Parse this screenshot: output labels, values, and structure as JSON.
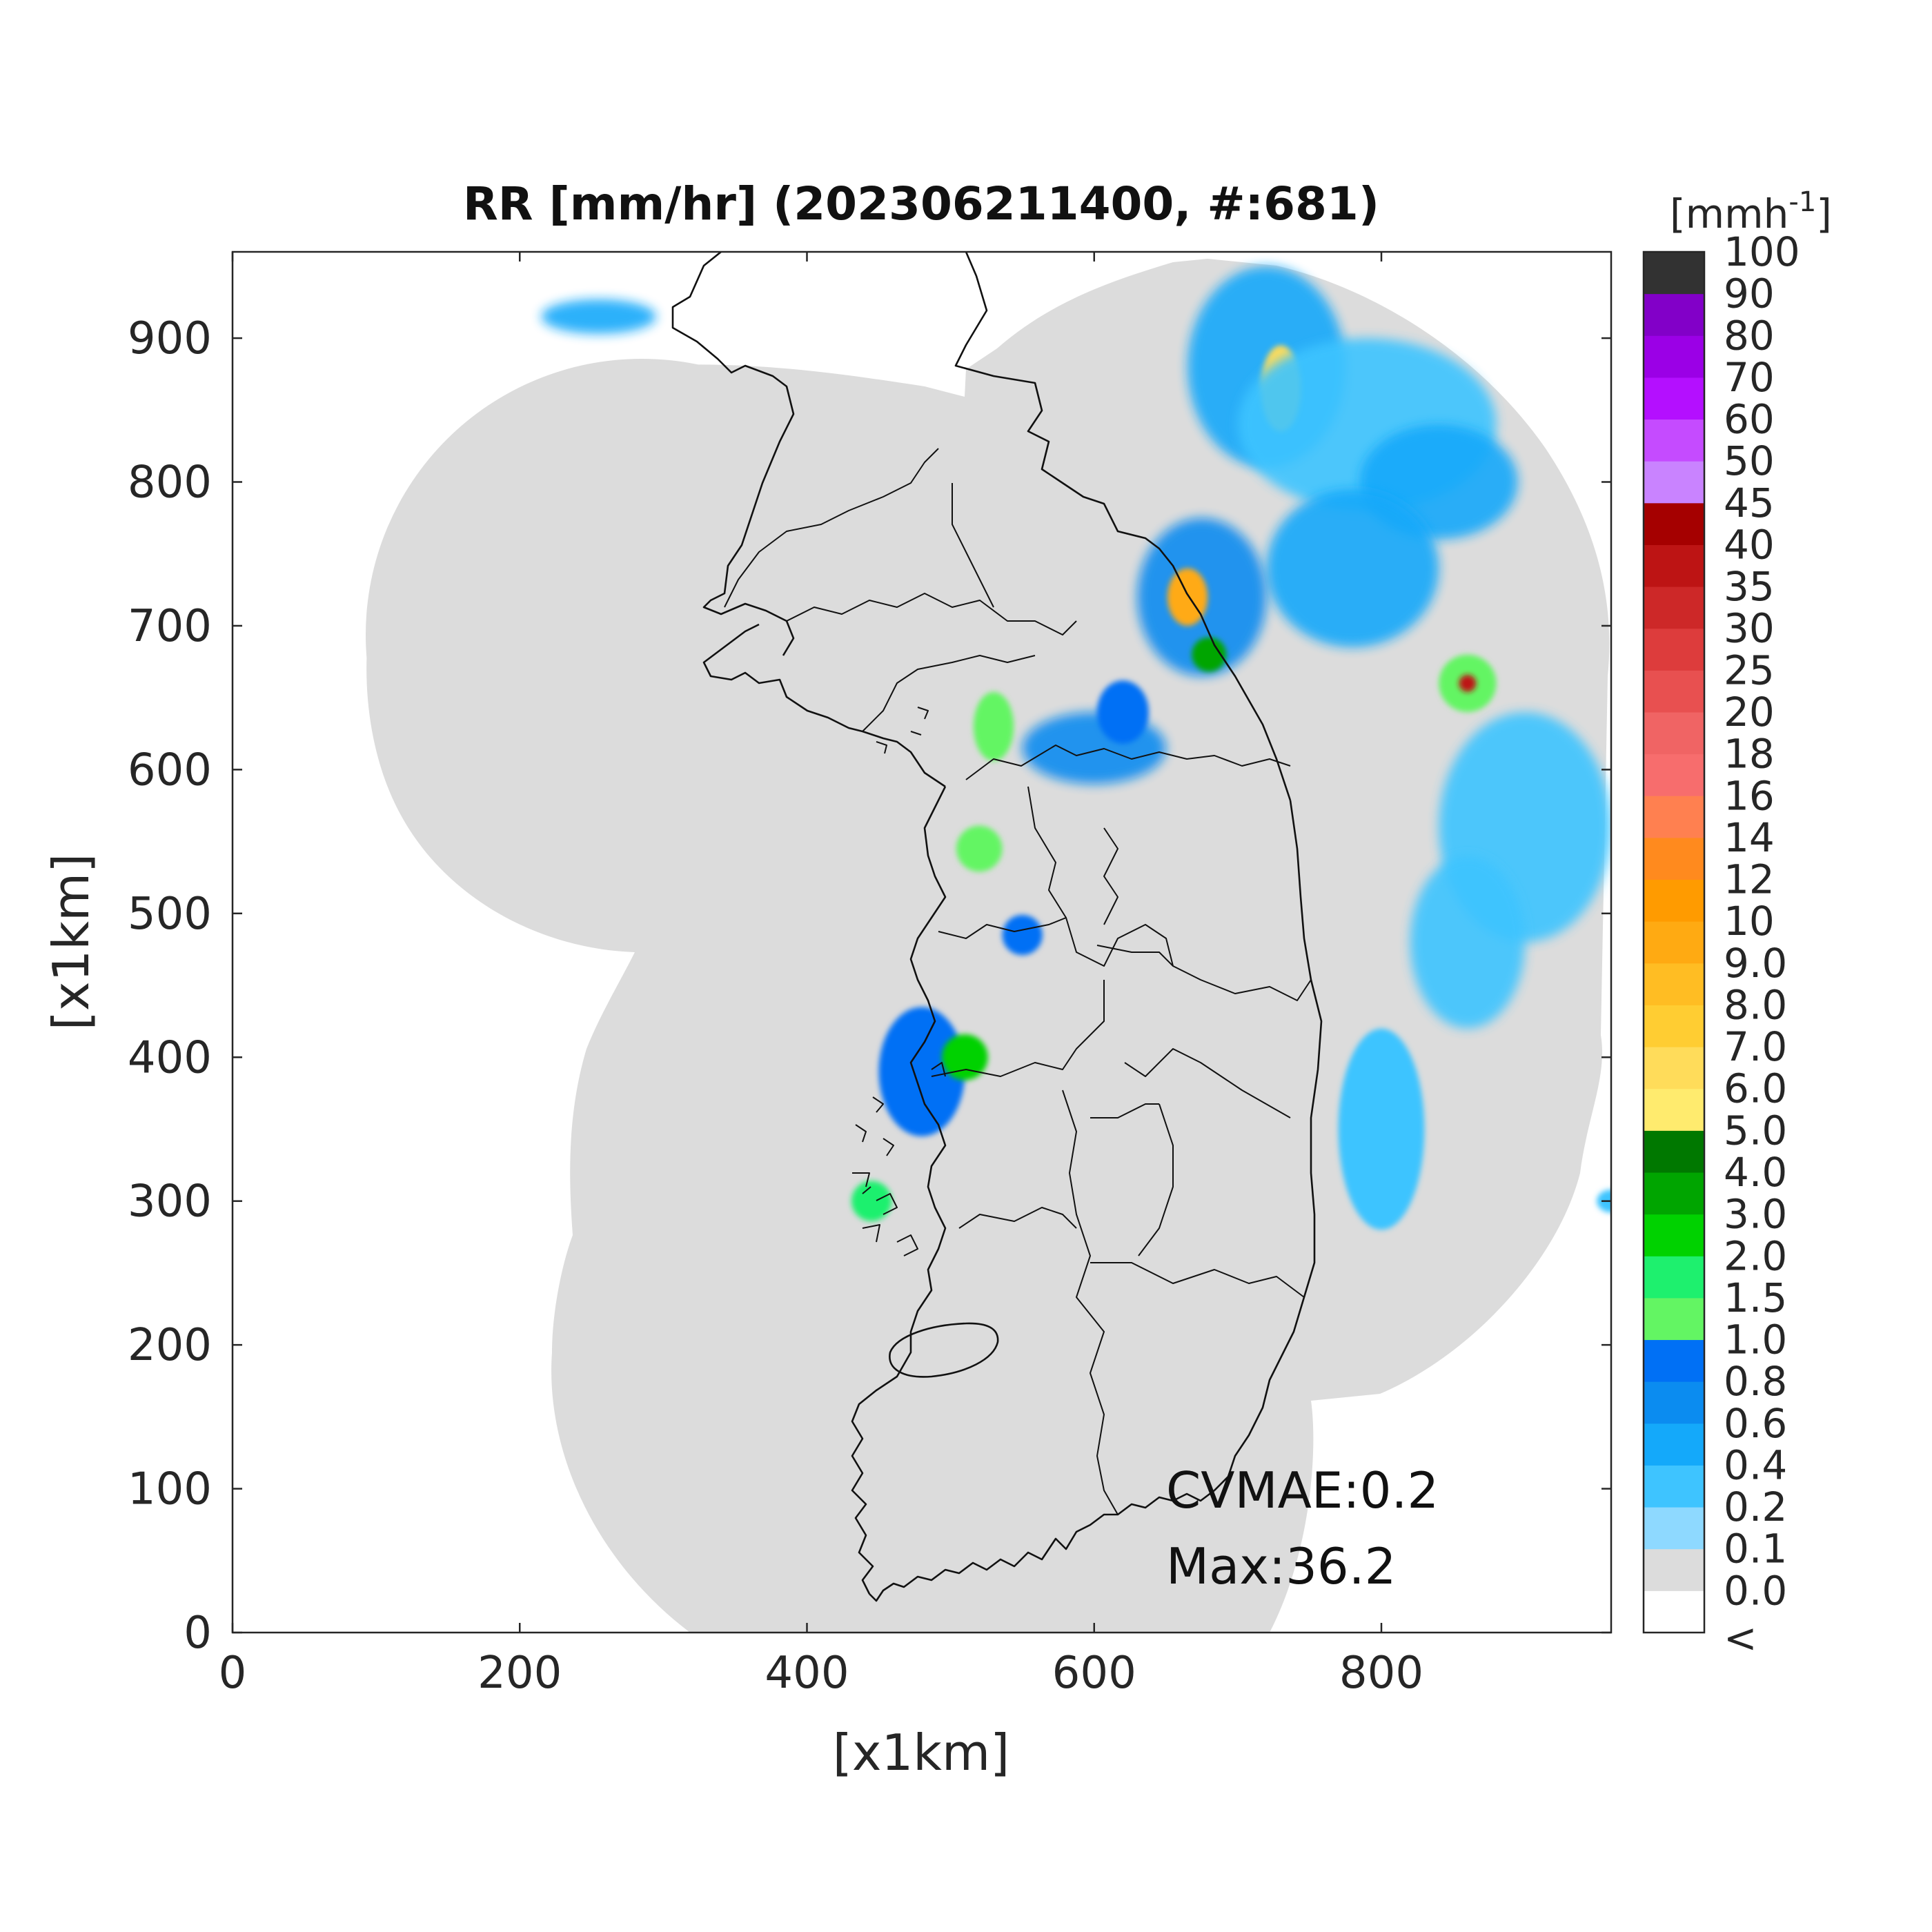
{
  "title": "RR [mm/hr] (202306211400, #:681)",
  "xlabel": "[x1km]",
  "ylabel": "[x1km]",
  "x_ticks": [
    "0",
    "200",
    "400",
    "600",
    "800"
  ],
  "y_ticks": [
    "0",
    "100",
    "200",
    "300",
    "400",
    "500",
    "600",
    "700",
    "800",
    "900"
  ],
  "colorbar": {
    "unit_main": "[mmh",
    "unit_sup": "-1",
    "unit_close": "]",
    "labels": [
      "<",
      "0.0",
      "0.1",
      "0.2",
      "0.4",
      "0.6",
      "0.8",
      "1.0",
      "1.5",
      "2.0",
      "3.0",
      "4.0",
      "5.0",
      "6.0",
      "7.0",
      "8.0",
      "9.0",
      "10",
      "12",
      "14",
      "16",
      "18",
      "20",
      "25",
      "30",
      "35",
      "40",
      "45",
      "50",
      "60",
      "70",
      "80",
      "90",
      "100"
    ],
    "colors": [
      "#ffffff",
      "#dcdcdc",
      "#8ed9ff",
      "#3ec4ff",
      "#14a9fa",
      "#0b8cf0",
      "#0070f5",
      "#63f563",
      "#1ef06e",
      "#00d200",
      "#00a500",
      "#007800",
      "#ffeb6e",
      "#ffdc5a",
      "#ffcd32",
      "#ffbd23",
      "#ffaa12",
      "#ff9b00",
      "#ff8a1e",
      "#ff8050",
      "#f76d6d",
      "#f06464",
      "#e85050",
      "#dd3c3c",
      "#cd2828",
      "#bd1414",
      "#a50000",
      "#c983ff",
      "#c54bff",
      "#b40fff",
      "#9b00e6",
      "#8200c8",
      "#323232"
    ]
  },
  "annotations": {
    "cvmae": "CVMAE:0.2",
    "max": "Max:36.2"
  },
  "chart_data": {
    "type": "heatmap",
    "title": "RR [mm/hr] (202306211400, #:681)",
    "xlabel": "[x1km]",
    "ylabel": "[x1km]",
    "xlim": [
      0,
      960
    ],
    "ylim": [
      0,
      960
    ],
    "colorbar_unit": "mmh-1",
    "colorbar_levels": [
      0.0,
      0.1,
      0.2,
      0.4,
      0.6,
      0.8,
      1.0,
      1.5,
      2.0,
      3.0,
      4.0,
      5.0,
      6.0,
      7.0,
      8.0,
      9.0,
      10,
      12,
      14,
      16,
      18,
      20,
      25,
      30,
      35,
      40,
      45,
      50,
      60,
      70,
      80,
      90,
      100
    ],
    "cvmae": 0.2,
    "max": 36.2,
    "precip_regions": [
      {
        "x": 720,
        "y": 880,
        "rx": 55,
        "ry": 70,
        "level": 0.4
      },
      {
        "x": 730,
        "y": 865,
        "rx": 14,
        "ry": 30,
        "level": 6.0
      },
      {
        "x": 790,
        "y": 840,
        "rx": 90,
        "ry": 60,
        "level": 0.2
      },
      {
        "x": 840,
        "y": 800,
        "rx": 55,
        "ry": 40,
        "level": 0.4
      },
      {
        "x": 780,
        "y": 740,
        "rx": 60,
        "ry": 55,
        "level": 0.4
      },
      {
        "x": 675,
        "y": 720,
        "rx": 45,
        "ry": 55,
        "level": 0.6
      },
      {
        "x": 665,
        "y": 720,
        "rx": 14,
        "ry": 20,
        "level": 9.0
      },
      {
        "x": 680,
        "y": 680,
        "rx": 12,
        "ry": 12,
        "level": 3.0
      },
      {
        "x": 860,
        "y": 660,
        "rx": 20,
        "ry": 20,
        "level": 1.0
      },
      {
        "x": 860,
        "y": 660,
        "rx": 6,
        "ry": 6,
        "level": 35
      },
      {
        "x": 900,
        "y": 560,
        "rx": 60,
        "ry": 80,
        "level": 0.2
      },
      {
        "x": 860,
        "y": 480,
        "rx": 40,
        "ry": 60,
        "level": 0.2
      },
      {
        "x": 800,
        "y": 350,
        "rx": 30,
        "ry": 70,
        "level": 0.2
      },
      {
        "x": 960,
        "y": 300,
        "rx": 10,
        "ry": 8,
        "level": 0.2
      },
      {
        "x": 530,
        "y": 630,
        "rx": 14,
        "ry": 24,
        "level": 1.0
      },
      {
        "x": 600,
        "y": 615,
        "rx": 50,
        "ry": 25,
        "level": 0.6
      },
      {
        "x": 620,
        "y": 640,
        "rx": 18,
        "ry": 22,
        "level": 0.8
      },
      {
        "x": 520,
        "y": 545,
        "rx": 16,
        "ry": 16,
        "level": 1.0
      },
      {
        "x": 550,
        "y": 485,
        "rx": 14,
        "ry": 14,
        "level": 0.8
      },
      {
        "x": 480,
        "y": 390,
        "rx": 30,
        "ry": 45,
        "level": 0.8
      },
      {
        "x": 510,
        "y": 400,
        "rx": 16,
        "ry": 16,
        "level": 2.0
      },
      {
        "x": 445,
        "y": 300,
        "rx": 14,
        "ry": 14,
        "level": 1.5
      },
      {
        "x": 255,
        "y": 915,
        "rx": 40,
        "ry": 12,
        "level": 0.4
      }
    ]
  }
}
